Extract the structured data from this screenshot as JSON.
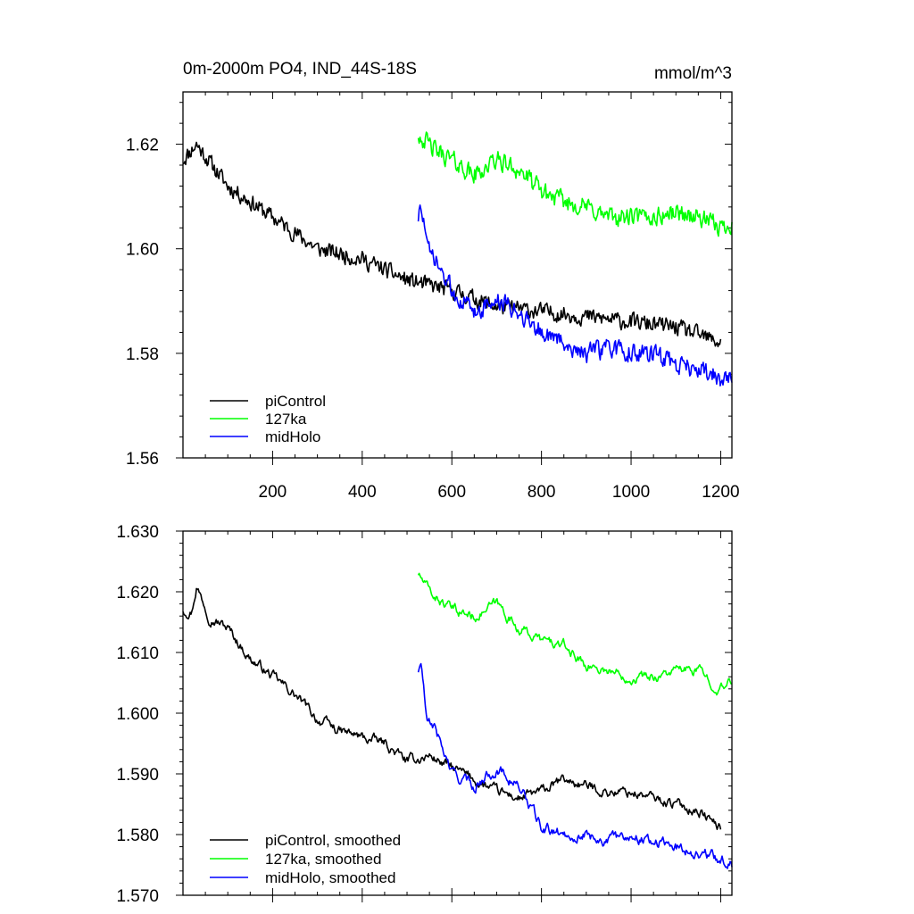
{
  "figure": {
    "title": "0m-2000m PO4, IND_44S-18S",
    "units": "mmol/m^3"
  },
  "chart_data": [
    {
      "type": "line",
      "panel": "top",
      "xlim": [
        0,
        1225
      ],
      "ylim": [
        1.56,
        1.63
      ],
      "x_ticks": [
        200,
        400,
        600,
        800,
        1000,
        1200
      ],
      "x_tick_labels": [
        "200",
        "400",
        "600",
        "800",
        "1000",
        "1200"
      ],
      "y_ticks": [
        1.56,
        1.58,
        1.6,
        1.62
      ],
      "y_tick_labels": [
        "1.56",
        "1.58",
        "1.60",
        "1.62"
      ],
      "legend_position": "bottom-left",
      "series": [
        {
          "name": "piControl",
          "color": "#000000",
          "x": [
            0,
            30,
            100,
            200,
            300,
            400,
            500,
            550,
            600,
            700,
            800,
            900,
            1000,
            1100,
            1200
          ],
          "y": [
            1.617,
            1.62,
            1.612,
            1.606,
            1.6,
            1.598,
            1.594,
            1.593,
            1.592,
            1.589,
            1.588,
            1.587,
            1.586,
            1.585,
            1.582
          ],
          "noise": 0.0022
        },
        {
          "name": "127ka",
          "color": "#00ff00",
          "x": [
            525,
            560,
            600,
            650,
            700,
            750,
            800,
            850,
            900,
            950,
            1000,
            1050,
            1100,
            1150,
            1200,
            1225
          ],
          "y": [
            1.622,
            1.619,
            1.617,
            1.614,
            1.617,
            1.615,
            1.611,
            1.609,
            1.608,
            1.606,
            1.606,
            1.606,
            1.607,
            1.606,
            1.604,
            1.605
          ],
          "noise": 0.0025
        },
        {
          "name": "midHolo",
          "color": "#0000ff",
          "x": [
            525,
            533,
            545,
            560,
            600,
            650,
            700,
            750,
            800,
            850,
            900,
            950,
            1000,
            1050,
            1100,
            1150,
            1200,
            1225
          ],
          "y": [
            1.606,
            1.608,
            1.6,
            1.598,
            1.592,
            1.588,
            1.59,
            1.588,
            1.584,
            1.582,
            1.58,
            1.581,
            1.58,
            1.58,
            1.578,
            1.577,
            1.575,
            1.575
          ],
          "noise": 0.0025
        }
      ]
    },
    {
      "type": "line",
      "panel": "bottom",
      "xlim": [
        0,
        1225
      ],
      "ylim": [
        1.57,
        1.63
      ],
      "x_ticks": [
        200,
        400,
        600,
        800,
        1000,
        1200
      ],
      "y_ticks": [
        1.57,
        1.58,
        1.59,
        1.6,
        1.61,
        1.62,
        1.63
      ],
      "y_tick_labels": [
        "1.570",
        "1.580",
        "1.590",
        "1.600",
        "1.610",
        "1.620",
        "1.630"
      ],
      "legend_position": "bottom-left",
      "series": [
        {
          "name": "piControl, smoothed",
          "color": "#000000",
          "x": [
            0,
            20,
            30,
            60,
            100,
            150,
            200,
            250,
            300,
            350,
            400,
            450,
            500,
            550,
            600,
            650,
            700,
            750,
            800,
            850,
            900,
            950,
            1000,
            1050,
            1100,
            1150,
            1200
          ],
          "y": [
            1.617,
            1.617,
            1.621,
            1.616,
            1.614,
            1.609,
            1.606,
            1.603,
            1.599,
            1.597,
            1.596,
            1.595,
            1.592,
            1.593,
            1.591,
            1.589,
            1.587,
            1.586,
            1.587,
            1.589,
            1.588,
            1.587,
            1.587,
            1.586,
            1.585,
            1.584,
            1.581
          ],
          "noise": 0.0011
        },
        {
          "name": "127ka, smoothed",
          "color": "#00ff00",
          "x": [
            525,
            550,
            600,
            650,
            700,
            750,
            800,
            850,
            900,
            950,
            1000,
            1050,
            1100,
            1150,
            1200,
            1225
          ],
          "y": [
            1.623,
            1.62,
            1.617,
            1.616,
            1.618,
            1.614,
            1.612,
            1.611,
            1.608,
            1.607,
            1.606,
            1.606,
            1.607,
            1.607,
            1.604,
            1.605
          ],
          "noise": 0.0011
        },
        {
          "name": "midHolo, smoothed",
          "color": "#0000ff",
          "x": [
            525,
            532,
            545,
            560,
            600,
            650,
            700,
            750,
            800,
            850,
            900,
            950,
            1000,
            1050,
            1100,
            1150,
            1200,
            1225
          ],
          "y": [
            1.607,
            1.608,
            1.598,
            1.598,
            1.59,
            1.588,
            1.591,
            1.588,
            1.581,
            1.58,
            1.58,
            1.579,
            1.58,
            1.579,
            1.578,
            1.577,
            1.576,
            1.575
          ],
          "noise": 0.0012
        }
      ]
    }
  ]
}
